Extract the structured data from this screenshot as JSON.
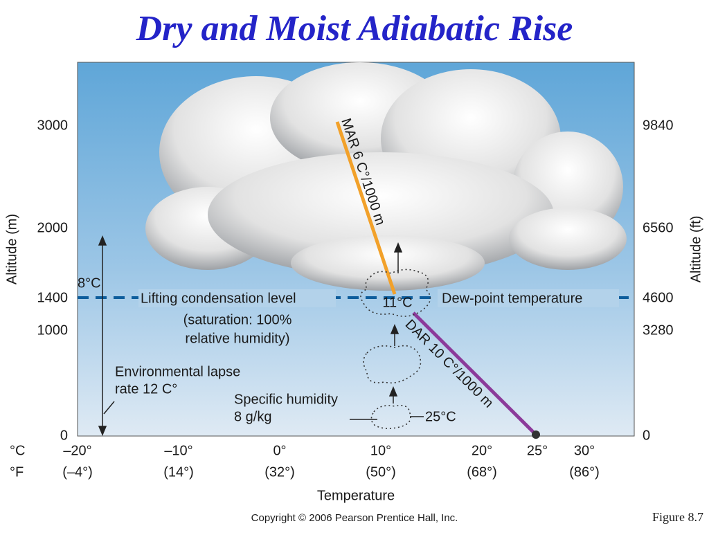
{
  "title": "Dry and Moist Adiabatic Rise",
  "y_axis_left": {
    "label": "Altitude (m)",
    "ticks": [
      "3000",
      "2000",
      "1400",
      "1000",
      "0"
    ]
  },
  "y_axis_right": {
    "label": "Altitude (ft)",
    "ticks": [
      "9840",
      "6560",
      "4600",
      "3280",
      "0"
    ]
  },
  "x_axis": {
    "label": "Temperature",
    "unit_c": "°C",
    "unit_f": "°F",
    "ticks_c": [
      "–20°",
      "–10°",
      "0°",
      "10°",
      "20°",
      "25°",
      "30°"
    ],
    "ticks_f": [
      "(–4°)",
      "(14°)",
      "(32°)",
      "(50°)",
      "(68°)",
      "(86°)"
    ]
  },
  "annotations": {
    "lcl_temp": "8°C",
    "lcl_1": "Lifting condensation level",
    "lcl_2": "(saturation: 100%",
    "lcl_3": "relative humidity)",
    "parcel_top": "11°C",
    "dew_point": "Dew-point temperature",
    "mar": "MAR 6 C°/1000 m",
    "dar": "DAR 10 C°/1000 m",
    "elr_1": "Environmental lapse",
    "elr_2": "rate 12 C°",
    "sh_1": "Specific humidity",
    "sh_2": "8 g/kg",
    "parcel_bottom": "25°C"
  },
  "footer": {
    "copyright": "Copyright © 2006 Pearson Prentice Hall, Inc.",
    "figure": "Figure  8.7"
  }
}
